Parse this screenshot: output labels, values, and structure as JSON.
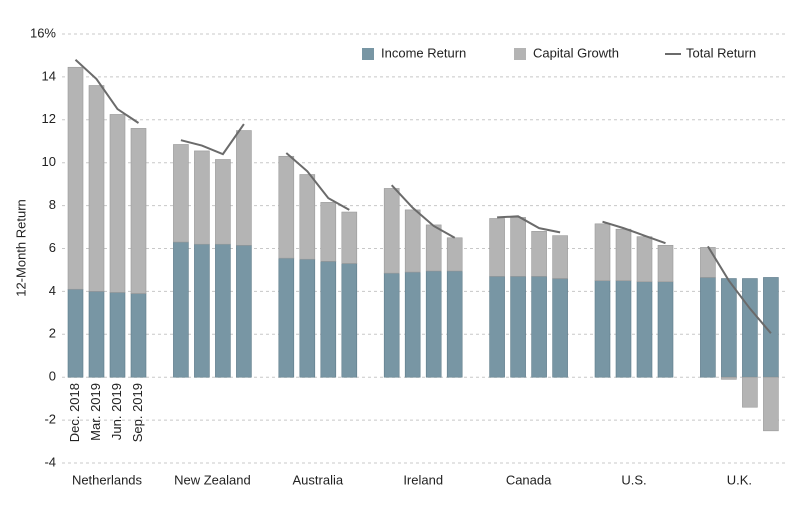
{
  "chart_data": {
    "type": "grouped-stacked-bar-line",
    "y_label": "12-Month Return",
    "groups": [
      "Netherlands",
      "New Zealand",
      "Australia",
      "Ireland",
      "Canada",
      "U.S.",
      "U.K."
    ],
    "periods": [
      "Dec. 2018",
      "Mar. 2019",
      "Jun. 2019",
      "Sep. 2019"
    ],
    "series": [
      {
        "name": "Income Return",
        "color": "#7896a4",
        "kind": "bar",
        "values": [
          [
            4.1,
            4.0,
            3.95,
            3.9
          ],
          [
            6.3,
            6.2,
            6.2,
            6.15
          ],
          [
            5.55,
            5.5,
            5.4,
            5.3
          ],
          [
            4.85,
            4.9,
            4.95,
            4.95
          ],
          [
            4.7,
            4.7,
            4.7,
            4.6
          ],
          [
            4.5,
            4.5,
            4.45,
            4.45
          ],
          [
            4.65,
            4.6,
            4.6,
            4.65
          ]
        ]
      },
      {
        "name": "Capital Growth",
        "color": "#b4b4b4",
        "kind": "bar",
        "values": [
          [
            10.35,
            9.6,
            8.3,
            7.7
          ],
          [
            4.55,
            4.35,
            3.95,
            5.35
          ],
          [
            4.75,
            3.95,
            2.75,
            2.4
          ],
          [
            3.95,
            2.9,
            2.15,
            1.55
          ],
          [
            2.7,
            2.75,
            2.1,
            2.0
          ],
          [
            2.65,
            2.4,
            2.1,
            1.7
          ],
          [
            1.4,
            -0.1,
            -1.4,
            -2.5
          ]
        ]
      },
      {
        "name": "Total Return",
        "color": "#6b6b6b",
        "kind": "line",
        "values": [
          [
            14.8,
            13.9,
            12.5,
            11.85
          ],
          [
            11.05,
            10.8,
            10.4,
            11.8
          ],
          [
            10.45,
            9.6,
            8.35,
            7.8
          ],
          [
            8.95,
            7.9,
            7.05,
            6.5
          ],
          [
            7.45,
            7.5,
            6.95,
            6.75
          ],
          [
            7.25,
            6.95,
            6.6,
            6.25
          ],
          [
            6.1,
            4.5,
            3.2,
            2.05
          ]
        ]
      }
    ],
    "ylim": [
      -4,
      16
    ],
    "yticks": [
      -4,
      -2,
      0,
      2,
      4,
      6,
      8,
      10,
      12,
      14,
      {
        "value": 16,
        "label": "16%"
      }
    ],
    "grid": true
  }
}
